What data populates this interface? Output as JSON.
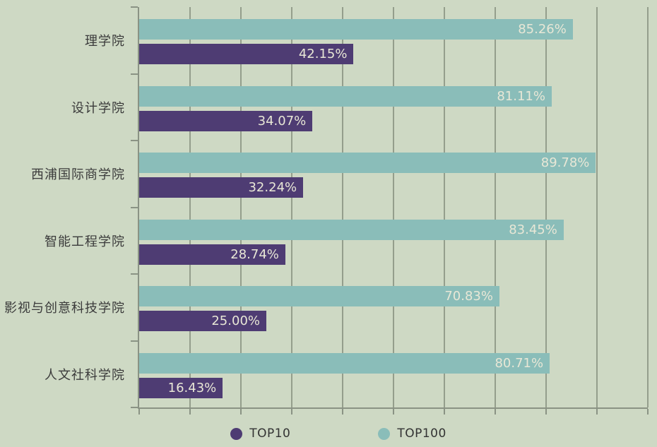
{
  "colors": {
    "background": "#ced9c4",
    "top10": "#4e3c73",
    "top100": "#8abdb9",
    "gridline": "#949e8c",
    "axis": "#8a9384",
    "value_text": "#e8e7d6",
    "category_text": "#3b3b3b",
    "legend_text": "#333333"
  },
  "legend": {
    "items": [
      {
        "label": "TOP10",
        "color": "#4e3c73"
      },
      {
        "label": "TOP100",
        "color": "#8abdb9"
      }
    ]
  },
  "chart_data": {
    "type": "bar",
    "orientation": "horizontal",
    "title": "",
    "xlabel": "",
    "ylabel": "",
    "categories": [
      "理学院",
      "设计学院",
      "西浦国际商学院",
      "智能工程学院",
      "影视与创意科技学院",
      "人文社科学院"
    ],
    "series": [
      {
        "name": "TOP100",
        "color": "#8abdb9",
        "values": [
          85.26,
          81.11,
          89.78,
          83.45,
          70.83,
          80.71
        ],
        "labels": [
          "85.26%",
          "81.11%",
          "89.78%",
          "83.45%",
          "70.83%",
          "80.71%"
        ]
      },
      {
        "name": "TOP10",
        "color": "#4e3c73",
        "values": [
          42.15,
          34.07,
          32.24,
          28.74,
          25.0,
          16.43
        ],
        "labels": [
          "42.15%",
          "34.07%",
          "32.24%",
          "28.74%",
          "25.00%",
          "16.43%"
        ]
      }
    ],
    "xlim": [
      0,
      100
    ],
    "grid_interval": 10,
    "grid": true,
    "legend_position": "bottom",
    "bar_value_labels_inside": true
  }
}
